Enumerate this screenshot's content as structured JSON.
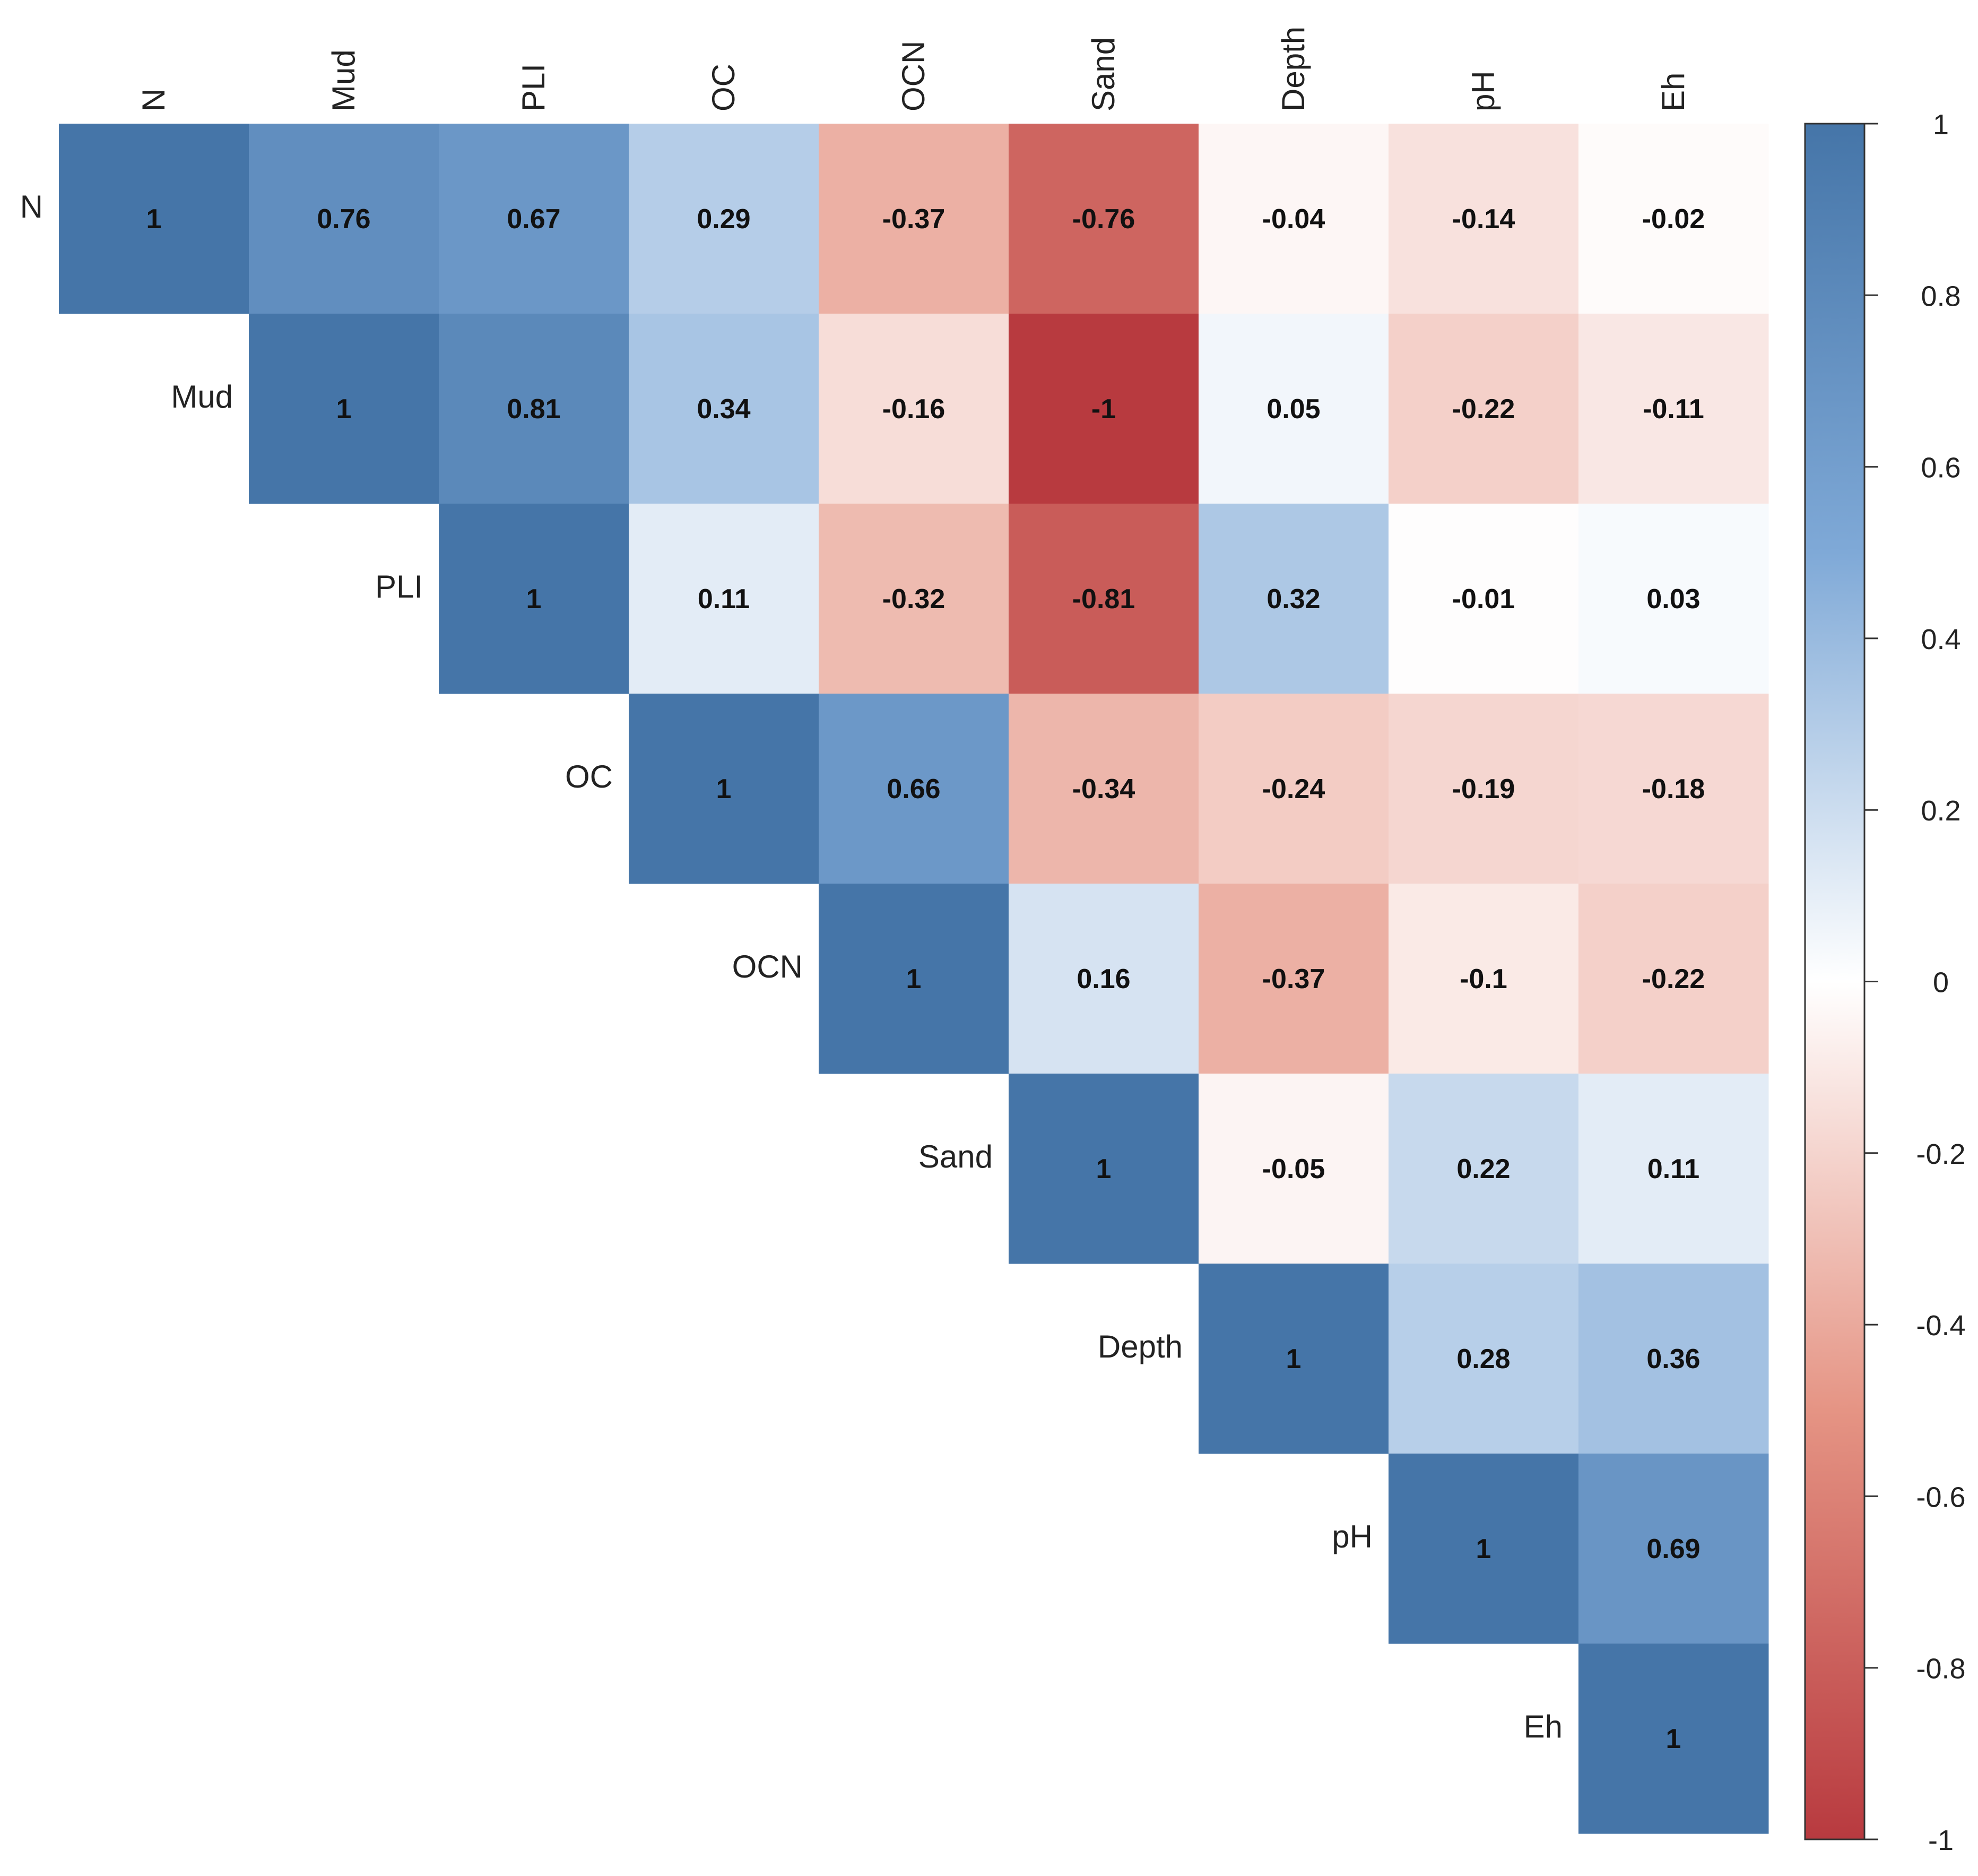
{
  "chart_data": {
    "type": "heatmap",
    "variables": [
      "N",
      "Mud",
      "PLI",
      "OC",
      "OCN",
      "Sand",
      "Depth",
      "pH",
      "Eh"
    ],
    "matrix": [
      [
        1,
        0.76,
        0.67,
        0.29,
        -0.37,
        -0.76,
        -0.04,
        -0.14,
        -0.02
      ],
      [
        null,
        1,
        0.81,
        0.34,
        -0.16,
        -1,
        0.05,
        -0.22,
        -0.11
      ],
      [
        null,
        null,
        1,
        0.11,
        -0.32,
        -0.81,
        0.32,
        -0.01,
        0.03
      ],
      [
        null,
        null,
        null,
        1,
        0.66,
        -0.34,
        -0.24,
        -0.19,
        -0.18
      ],
      [
        null,
        null,
        null,
        null,
        1,
        0.16,
        -0.37,
        -0.1,
        -0.22
      ],
      [
        null,
        null,
        null,
        null,
        null,
        1,
        -0.05,
        0.22,
        0.11
      ],
      [
        null,
        null,
        null,
        null,
        null,
        null,
        1,
        0.28,
        0.36
      ],
      [
        null,
        null,
        null,
        null,
        null,
        null,
        null,
        1,
        0.69
      ],
      [
        null,
        null,
        null,
        null,
        null,
        null,
        null,
        null,
        1
      ]
    ],
    "labels": [
      [
        "1",
        "0.76",
        "0.67",
        "0.29",
        "-0.37",
        "-0.76",
        "-0.04",
        "-0.14",
        "-0.02"
      ],
      [
        "",
        "1",
        "0.81",
        "0.34",
        "-0.16",
        "-1",
        "0.05",
        "-0.22",
        "-0.11"
      ],
      [
        "",
        "",
        "1",
        "0.11",
        "-0.32",
        "-0.81",
        "0.32",
        "-0.01",
        "0.03"
      ],
      [
        "",
        "",
        "",
        "1",
        "0.66",
        "-0.34",
        "-0.24",
        "-0.19",
        "-0.18"
      ],
      [
        "",
        "",
        "",
        "",
        "1",
        "0.16",
        "-0.37",
        "-0.1",
        "-0.22"
      ],
      [
        "",
        "",
        "",
        "",
        "",
        "1",
        "-0.05",
        "0.22",
        "0.11"
      ],
      [
        "",
        "",
        "",
        "",
        "",
        "",
        "1",
        "0.28",
        "0.36"
      ],
      [
        "",
        "",
        "",
        "",
        "",
        "",
        "",
        "1",
        "0.69"
      ],
      [
        "",
        "",
        "",
        "",
        "",
        "",
        "",
        "",
        "1"
      ]
    ],
    "colorbar": {
      "range": [
        -1,
        1
      ],
      "ticks": [
        "1",
        "0.8",
        "0.6",
        "0.4",
        "0.2",
        "0",
        "-0.2",
        "-0.4",
        "-0.6",
        "-0.8",
        "-1"
      ],
      "tick_values": [
        1,
        0.8,
        0.6,
        0.4,
        0.2,
        0,
        -0.2,
        -0.4,
        -0.6,
        -0.8,
        -1
      ]
    },
    "colors": {
      "negative": "#B83A3F",
      "neutral": "#FFFFFF",
      "positive": "#4575A8",
      "stops": [
        {
          "value": -1,
          "color": "#B83A3F"
        },
        {
          "value": -0.5,
          "color": "#E59484"
        },
        {
          "value": 0,
          "color": "#FFFFFF"
        },
        {
          "value": 0.5,
          "color": "#7FA9D7"
        },
        {
          "value": 1,
          "color": "#4575A8"
        }
      ]
    }
  }
}
